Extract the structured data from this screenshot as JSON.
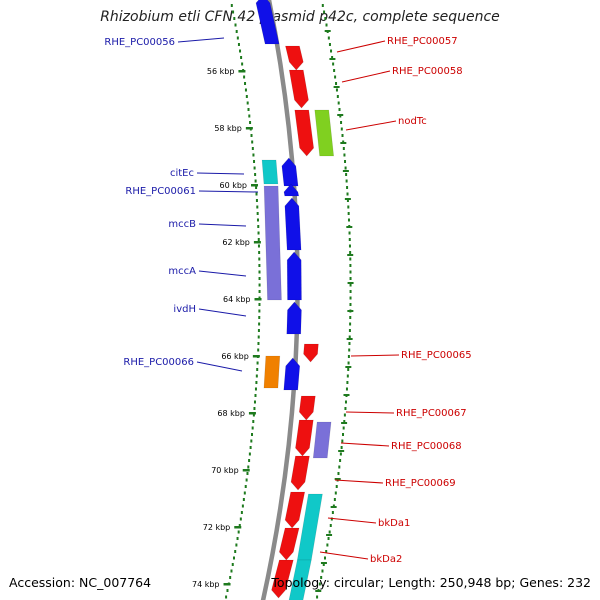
{
  "title": "Rhizobium etli CFN 42 plasmid p42c, complete sequence",
  "footer": {
    "accession_label": "Accession:",
    "accession": "NC_007764",
    "topology_label": "Topology:",
    "topology": "circular;",
    "length_label": "Length:",
    "length": "250,948 bp;",
    "genes_label": "Genes:",
    "genes": "232"
  },
  "colors": {
    "reverse_label": "#1a1aa8",
    "forward_label": "#cc0000",
    "backbone": "#8a8a8a",
    "dots": "#1e7a1e",
    "blue": "#1010e8",
    "red": "#ee1010",
    "cyan": "#10c8c8",
    "purple": "#7a70d8",
    "orange": "#f08000",
    "lime": "#80d020"
  },
  "scale_ticks": [
    "56 kbp",
    "58 kbp",
    "60 kbp",
    "62 kbp",
    "64 kbp",
    "66 kbp",
    "68 kbp",
    "70 kbp",
    "72 kbp",
    "74 kbp"
  ],
  "reverse_genes": [
    {
      "label": "RHE_PC00056"
    },
    {
      "label": "citEc"
    },
    {
      "label": "RHE_PC00061"
    },
    {
      "label": "mccB"
    },
    {
      "label": "mccA"
    },
    {
      "label": "ivdH"
    },
    {
      "label": "RHE_PC00066"
    }
  ],
  "forward_genes": [
    {
      "label": "RHE_PC00057"
    },
    {
      "label": "RHE_PC00058"
    },
    {
      "label": "nodTc"
    },
    {
      "label": "RHE_PC00065"
    },
    {
      "label": "RHE_PC00067"
    },
    {
      "label": "RHE_PC00068"
    },
    {
      "label": "RHE_PC00069"
    },
    {
      "label": "bkDa1"
    },
    {
      "label": "bkDa2"
    }
  ]
}
